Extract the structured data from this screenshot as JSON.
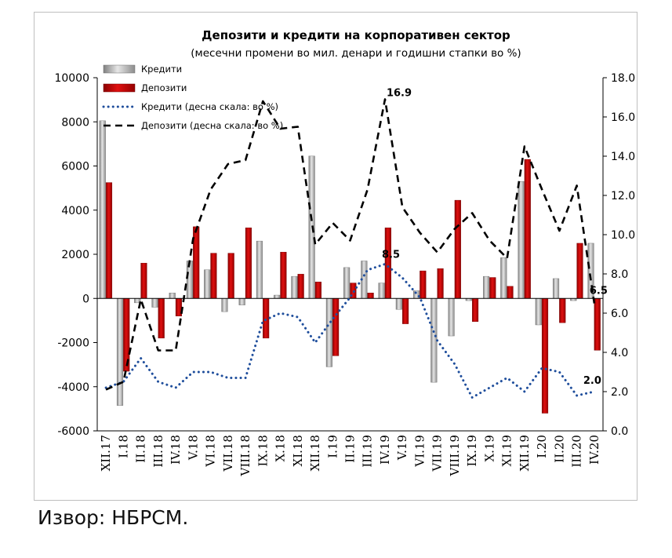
{
  "source_note": "Извор: НБРСМ.",
  "chart_data": {
    "type": "bar",
    "title": "Депозити и кредити на корпоративен сектор",
    "subtitle": "(месечни промени во мил. денари и годишни стапки во %)",
    "categories": [
      "XII.17",
      "I.18",
      "II.18",
      "III.18",
      "IV.18",
      "V.18",
      "VI.18",
      "VII.18",
      "VIII.18",
      "IX.18",
      "X.18",
      "XI.18",
      "XII.18",
      "I.19",
      "II.19",
      "III.19",
      "IV.19",
      "V.19",
      "VI.19",
      "VII.19",
      "VIII.19",
      "IX.19",
      "X.19",
      "XI.19",
      "XII.19",
      "I.20",
      "II.20",
      "III.20",
      "IV.20"
    ],
    "x_tick_labels": [
      "XII.17",
      "I.18",
      "II.18",
      "III.18",
      "IV.18",
      "V.18",
      "VI.18",
      "VII.18",
      "VIII.18",
      "IX.18",
      "X.18",
      "XI.18",
      "XII.18",
      "I.19",
      "II.19",
      "III.19",
      "IV.19",
      "V.19",
      "VI.19",
      "VII.19",
      "VIII.19",
      "IX.19",
      "X.19",
      "XI.19",
      "XII.19",
      "I.20",
      "II.20",
      "III.20",
      "IV.20"
    ],
    "y_left": {
      "ylim": [
        -6000,
        10000
      ],
      "ticks": [
        "10000",
        "8000",
        "6000",
        "4000",
        "2000",
        "0",
        "-2000",
        "-4000",
        "-6000"
      ]
    },
    "y_right": {
      "ylim": [
        0,
        18
      ],
      "ticks": [
        "18.0",
        "16.0",
        "14.0",
        "12.0",
        "10.0",
        "8.0",
        "6.0",
        "4.0",
        "2.0",
        "0.0"
      ]
    },
    "bar_series": [
      {
        "name": "Кредити",
        "color": "#a6a6a6",
        "values": [
          8050,
          -4850,
          -200,
          -400,
          250,
          1700,
          1300,
          -600,
          -300,
          2600,
          150,
          1000,
          6450,
          -3100,
          1400,
          1700,
          700,
          -500,
          350,
          -3800,
          -1700,
          -100,
          1000,
          1850,
          5300,
          -1200,
          900,
          -100,
          2500
        ]
      },
      {
        "name": "Депозити",
        "color": "#c00000",
        "values": [
          5250,
          -3300,
          1600,
          -1800,
          -800,
          3250,
          2050,
          2050,
          3200,
          -1800,
          2100,
          1100,
          750,
          -2600,
          700,
          250,
          3200,
          -1150,
          1250,
          1350,
          4450,
          -1050,
          950,
          550,
          6300,
          -5200,
          -1100,
          2500,
          -2350
        ]
      }
    ],
    "line_series": [
      {
        "name": "Кредити (десна скала: во %)",
        "color": "#1f4e9c",
        "style": "dotted",
        "values": [
          2.2,
          2.5,
          3.7,
          2.5,
          2.2,
          3.0,
          3.0,
          2.7,
          2.7,
          5.6,
          6.0,
          5.8,
          4.5,
          5.7,
          6.8,
          8.2,
          8.5,
          7.8,
          6.8,
          4.6,
          3.4,
          1.7,
          2.2,
          2.7,
          2.0,
          3.2,
          3.0,
          1.8,
          2.0
        ]
      },
      {
        "name": "Депозити (десна скала: во %)",
        "color": "#000000",
        "style": "dashed",
        "values": [
          2.1,
          2.5,
          6.7,
          4.1,
          4.1,
          9.8,
          12.3,
          13.6,
          13.8,
          16.8,
          15.4,
          15.5,
          9.5,
          10.6,
          9.7,
          12.3,
          16.9,
          11.4,
          10.1,
          9.1,
          10.3,
          11.1,
          9.7,
          8.8,
          14.5,
          12.3,
          10.2,
          12.5,
          6.5
        ]
      }
    ],
    "annotations": [
      {
        "text": "16.9",
        "series": 1,
        "index": 16,
        "bold": true
      },
      {
        "text": "8.5",
        "series": 0,
        "index": 16,
        "bold": true
      },
      {
        "text": "6.5",
        "series": 1,
        "index": 28,
        "bold": true
      },
      {
        "text": "2.0",
        "series": 0,
        "index": 28,
        "bold": true
      }
    ],
    "legend_position": "top-left",
    "grid": false
  }
}
